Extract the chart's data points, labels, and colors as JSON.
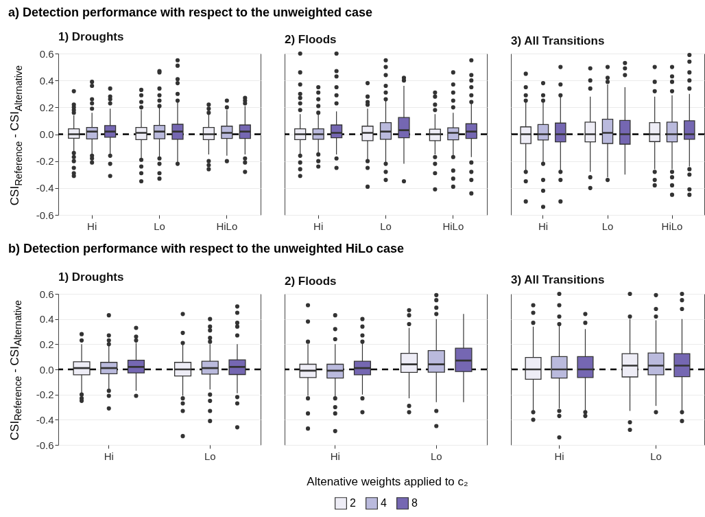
{
  "chart_data": [
    {
      "type": "other",
      "title": "a) Detection performance with respect to the unweighted case"
    },
    {
      "type": "box",
      "title": "1) Droughts",
      "ylabel": "CSI$_{Reference}$ - CSI$_{Alternative}$",
      "categories": [
        "Hi",
        "Lo",
        "HiLo"
      ],
      "ylim": [
        -0.6,
        0.6
      ],
      "yticks": [
        -0.6,
        -0.4,
        -0.2,
        {
          "value": 0,
          "label": "0.0"
        },
        0.2,
        0.4,
        0.6
      ],
      "grid": "y",
      "legend": "bottom",
      "legend_title": "Altenative weights applied to c₂",
      "ref_lines": [
        {
          "axis": "y",
          "value": 0,
          "color": "#000000",
          "line_style": "dashed"
        }
      ],
      "series": [
        {
          "name": "2",
          "color": "#eeedf6",
          "boxes": [
            {
              "low": -0.13,
              "q1": -0.03,
              "median": 0,
              "q3": 0.04,
              "high": 0.14,
              "outliers": [
                0.32,
                0.22,
                0.2,
                0.18,
                0.16,
                -0.14,
                -0.17,
                -0.2,
                -0.25,
                -0.29,
                -0.31
              ]
            },
            {
              "low": -0.18,
              "q1": -0.04,
              "median": 0.01,
              "q3": 0.05,
              "high": 0.18,
              "outliers": [
                0.33,
                0.29,
                0.24,
                0.2,
                -0.19,
                -0.24,
                -0.29,
                -0.35
              ]
            },
            {
              "low": -0.15,
              "q1": -0.04,
              "median": 0,
              "q3": 0.05,
              "high": 0.15,
              "outliers": [
                0.22,
                0.19,
                0.16,
                -0.2,
                -0.23,
                -0.26
              ]
            }
          ]
        },
        {
          "name": "4",
          "color": "#babadd",
          "boxes": [
            {
              "low": -0.15,
              "q1": -0.035,
              "median": 0.02,
              "q3": 0.05,
              "high": 0.16,
              "outliers": [
                0.39,
                0.36,
                0.26,
                0.23,
                0.19,
                -0.16,
                -0.18,
                -0.21
              ]
            },
            {
              "low": -0.17,
              "q1": -0.034,
              "median": 0.02,
              "q3": 0.066,
              "high": 0.2,
              "outliers": [
                0.47,
                0.46,
                0.34,
                0.29,
                0.25,
                0.21,
                -0.18,
                -0.22,
                -0.29,
                -0.33
              ]
            },
            {
              "low": -0.16,
              "q1": -0.031,
              "median": 0.01,
              "q3": 0.06,
              "high": 0.18,
              "outliers": [
                0.25,
                0.2,
                -0.2
              ]
            }
          ]
        },
        {
          "name": "8",
          "color": "#7567b2",
          "boxes": [
            {
              "low": -0.15,
              "q1": -0.022,
              "median": 0.02,
              "q3": 0.064,
              "high": 0.19,
              "outliers": [
                0.34,
                0.28,
                0.26,
                0.23,
                -0.16,
                -0.22,
                -0.31
              ]
            },
            {
              "low": -0.21,
              "q1": -0.038,
              "median": 0.02,
              "q3": 0.074,
              "high": 0.24,
              "outliers": [
                0.55,
                0.51,
                0.41,
                0.38,
                0.3,
                0.25,
                -0.22
              ]
            },
            {
              "low": -0.15,
              "q1": -0.031,
              "median": 0.02,
              "q3": 0.069,
              "high": 0.21,
              "outliers": [
                0.27,
                0.25,
                0.23,
                -0.18,
                -0.21,
                -0.28
              ]
            }
          ]
        }
      ]
    },
    {
      "type": "box",
      "title": "2) Floods",
      "categories": [
        "Hi",
        "Lo",
        "HiLo"
      ],
      "ylim": [
        -0.6,
        0.6
      ],
      "yticks": [
        -0.6,
        -0.4,
        -0.2,
        0,
        0.2,
        0.4,
        0.6
      ],
      "grid": "y",
      "tick_labels": "x",
      "ref_lines": [
        {
          "axis": "y",
          "value": 0,
          "color": "#000000",
          "line_style": "dashed"
        }
      ],
      "series": [
        {
          "name": "2",
          "color": "#eeedf6",
          "boxes": [
            {
              "low": -0.15,
              "q1": -0.04,
              "median": 0,
              "q3": 0.04,
              "high": 0.15,
              "outliers": [
                0.6,
                0.46,
                0.37,
                0.3,
                0.27,
                0.23,
                0.18,
                -0.16,
                -0.21,
                -0.26,
                -0.31
              ]
            },
            {
              "low": -0.19,
              "q1": -0.048,
              "median": 0.01,
              "q3": 0.06,
              "high": 0.19,
              "outliers": [
                0.38,
                0.28,
                0.24,
                0.22,
                -0.2,
                -0.25,
                -0.39
              ]
            },
            {
              "low": -0.15,
              "q1": -0.048,
              "median": 0,
              "q3": 0.038,
              "high": 0.15,
              "outliers": [
                0.31,
                0.28,
                0.22,
                0.18,
                -0.17,
                -0.22,
                -0.29,
                -0.41
              ]
            }
          ]
        },
        {
          "name": "4",
          "color": "#babadd",
          "boxes": [
            {
              "low": -0.14,
              "q1": -0.038,
              "median": 0,
              "q3": 0.04,
              "high": 0.15,
              "outliers": [
                0.35,
                0.31,
                0.26,
                0.21,
                0.16,
                -0.15,
                -0.2,
                -0.24
              ]
            },
            {
              "low": -0.21,
              "q1": -0.038,
              "median": 0.02,
              "q3": 0.086,
              "high": 0.25,
              "outliers": [
                0.55,
                0.5,
                0.44,
                0.36,
                0.31,
                0.26,
                -0.22,
                -0.28,
                -0.34
              ]
            },
            {
              "low": -0.16,
              "q1": -0.041,
              "median": 0.01,
              "q3": 0.048,
              "high": 0.16,
              "outliers": [
                0.46,
                0.37,
                0.31,
                0.25,
                0.2,
                -0.17,
                -0.27,
                -0.33,
                -0.39
              ]
            }
          ]
        },
        {
          "name": "8",
          "color": "#7567b2",
          "boxes": [
            {
              "low": -0.15,
              "q1": -0.026,
              "median": 0.01,
              "q3": 0.069,
              "high": 0.17,
              "outliers": [
                0.6,
                0.47,
                0.43,
                0.35,
                0.29,
                0.23,
                -0.18,
                -0.25
              ]
            },
            {
              "low": -0.22,
              "q1": -0.026,
              "median": 0.03,
              "q3": 0.124,
              "high": 0.36,
              "outliers": [
                0.42,
                0.4,
                -0.35
              ]
            },
            {
              "low": -0.17,
              "q1": -0.031,
              "median": 0.02,
              "q3": 0.078,
              "high": 0.23,
              "outliers": [
                0.55,
                0.44,
                0.4,
                0.35,
                0.29,
                0.24,
                -0.21,
                -0.28,
                -0.34,
                -0.44
              ]
            }
          ]
        }
      ]
    },
    {
      "type": "box",
      "title": "3) All Transitions",
      "categories": [
        "Hi",
        "Lo",
        "HiLo"
      ],
      "ylim": [
        -0.6,
        0.6
      ],
      "yticks": [
        -0.6,
        -0.4,
        -0.2,
        0,
        0.2,
        0.4,
        0.6
      ],
      "grid": "y",
      "tick_labels": "x",
      "ref_lines": [
        {
          "axis": "y",
          "value": 0,
          "color": "#000000",
          "line_style": "dashed"
        }
      ],
      "series": [
        {
          "name": "2",
          "color": "#eeedf6",
          "boxes": [
            {
              "low": -0.27,
              "q1": -0.07,
              "median": 0,
              "q3": 0.055,
              "high": 0.24,
              "outliers": [
                0.45,
                0.35,
                0.29,
                0.25,
                -0.28,
                -0.35,
                -0.5
              ]
            },
            {
              "low": -0.28,
              "q1": -0.057,
              "median": 0,
              "q3": 0.09,
              "high": 0.28,
              "outliers": [
                0.49,
                0.4,
                0.34,
                -0.32,
                -0.4
              ]
            },
            {
              "low": -0.26,
              "q1": -0.055,
              "median": 0,
              "q3": 0.086,
              "high": 0.28,
              "outliers": [
                0.5,
                0.39,
                0.32,
                -0.28,
                -0.34,
                -0.38
              ]
            }
          ]
        },
        {
          "name": "4",
          "color": "#babadd",
          "boxes": [
            {
              "low": -0.21,
              "q1": -0.043,
              "median": 0,
              "q3": 0.072,
              "high": 0.24,
              "outliers": [
                0.38,
                0.29,
                0.25,
                -0.22,
                -0.34,
                -0.42,
                -0.54
              ]
            },
            {
              "low": -0.32,
              "q1": -0.069,
              "median": 0.01,
              "q3": 0.112,
              "high": 0.37,
              "outliers": [
                0.5,
                0.42,
                0.39,
                -0.34
              ]
            },
            {
              "low": -0.26,
              "q1": -0.057,
              "median": 0,
              "q3": 0.09,
              "high": 0.29,
              "outliers": [
                0.5,
                0.43,
                0.39,
                0.32,
                -0.28,
                -0.32,
                -0.38,
                -0.45
              ]
            }
          ]
        },
        {
          "name": "8",
          "color": "#7567b2",
          "boxes": [
            {
              "low": -0.27,
              "q1": -0.057,
              "median": 0,
              "q3": 0.083,
              "high": 0.28,
              "outliers": [
                0.5,
                0.37,
                0.29,
                -0.28,
                -0.34,
                -0.5
              ]
            },
            {
              "low": -0.3,
              "q1": -0.074,
              "median": 0,
              "q3": 0.103,
              "high": 0.35,
              "outliers": [
                0.53,
                0.49,
                0.44
              ]
            },
            {
              "low": -0.24,
              "q1": -0.038,
              "median": 0,
              "q3": 0.1,
              "high": 0.3,
              "outliers": [
                0.59,
                0.54,
                0.46,
                0.4,
                0.34,
                -0.26,
                -0.3,
                -0.41,
                -0.45
              ]
            }
          ]
        }
      ]
    },
    {
      "type": "other",
      "title": "b) Detection performance with respect to the unweighted HiLo case"
    },
    {
      "type": "box",
      "title": "1) Droughts",
      "ylabel": "CSI$_{Reference}$ - CSI$_{Alternative}$",
      "categories": [
        "Hi",
        "Lo"
      ],
      "ylim": [
        -0.6,
        0.6
      ],
      "yticks": [
        -0.6,
        -0.4,
        -0.2,
        {
          "value": 0,
          "label": "0.0"
        },
        0.2,
        0.4,
        0.6
      ],
      "grid": "y",
      "ref_lines": [
        {
          "axis": "y",
          "value": 0,
          "color": "#000000",
          "line_style": "dashed"
        }
      ],
      "series": [
        {
          "name": "2",
          "color": "#eeedf6",
          "boxes": [
            {
              "low": -0.19,
              "q1": -0.043,
              "median": 0.01,
              "q3": 0.061,
              "high": 0.2,
              "outliers": [
                0.28,
                0.23,
                -0.2,
                -0.23,
                -0.25
              ]
            },
            {
              "low": -0.21,
              "q1": -0.052,
              "median": 0,
              "q3": 0.056,
              "high": 0.2,
              "outliers": [
                0.44,
                0.29,
                0.21,
                -0.23,
                -0.27,
                -0.33,
                -0.53
              ]
            }
          ]
        },
        {
          "name": "4",
          "color": "#babadd",
          "boxes": [
            {
              "low": -0.16,
              "q1": -0.035,
              "median": 0.01,
              "q3": 0.056,
              "high": 0.19,
              "outliers": [
                0.43,
                0.27,
                0.23,
                0.2,
                -0.17,
                -0.21,
                -0.31
              ]
            },
            {
              "low": -0.16,
              "q1": -0.037,
              "median": 0.01,
              "q3": 0.065,
              "high": 0.2,
              "outliers": [
                0.4,
                0.34,
                0.31,
                0.25,
                0.22,
                -0.2,
                -0.25,
                -0.33,
                -0.41
              ]
            }
          ]
        },
        {
          "name": "8",
          "color": "#7567b2",
          "boxes": [
            {
              "low": -0.17,
              "q1": -0.028,
              "median": 0.02,
              "q3": 0.073,
              "high": 0.21,
              "outliers": [
                0.33,
                0.26,
                0.23,
                -0.21
              ]
            },
            {
              "low": -0.19,
              "q1": -0.041,
              "median": 0.02,
              "q3": 0.076,
              "high": 0.2,
              "outliers": [
                0.5,
                0.45,
                0.37,
                0.34,
                0.27,
                -0.22,
                -0.27,
                -0.46
              ]
            }
          ]
        }
      ]
    },
    {
      "type": "box",
      "title": "2) Floods",
      "categories": [
        "Hi",
        "Lo"
      ],
      "ylim": [
        -0.6,
        0.6
      ],
      "yticks": [
        -0.6,
        -0.4,
        -0.2,
        0,
        0.2,
        0.4,
        0.6
      ],
      "grid": "y",
      "tick_labels": "x",
      "ref_lines": [
        {
          "axis": "y",
          "value": 0,
          "color": "#000000",
          "line_style": "dashed"
        }
      ],
      "series": [
        {
          "name": "2",
          "color": "#eeedf6",
          "boxes": [
            {
              "low": -0.21,
              "q1": -0.065,
              "median": -0.01,
              "q3": 0.041,
              "high": 0.2,
              "outliers": [
                0.51,
                0.38,
                0.22,
                -0.23,
                -0.35,
                -0.47
              ]
            },
            {
              "low": -0.23,
              "q1": -0.024,
              "median": 0.04,
              "q3": 0.127,
              "high": 0.33,
              "outliers": [
                0.47,
                0.43,
                0.36,
                -0.29,
                -0.34
              ]
            }
          ]
        },
        {
          "name": "4",
          "color": "#babadd",
          "boxes": [
            {
              "low": -0.22,
              "q1": -0.069,
              "median": -0.01,
              "q3": 0.041,
              "high": 0.2,
              "outliers": [
                0.43,
                0.32,
                0.24,
                -0.23,
                -0.3,
                -0.35,
                -0.49
              ]
            },
            {
              "low": -0.26,
              "q1": -0.022,
              "median": 0.04,
              "q3": 0.149,
              "high": 0.4,
              "outliers": [
                0.59,
                0.55,
                0.49,
                0.44,
                -0.33,
                -0.45
              ]
            }
          ]
        },
        {
          "name": "8",
          "color": "#7567b2",
          "boxes": [
            {
              "low": -0.2,
              "q1": -0.043,
              "median": 0.01,
              "q3": 0.065,
              "high": 0.21,
              "outliers": [
                0.4,
                0.34,
                0.27,
                0.22,
                -0.23,
                -0.34
              ]
            },
            {
              "low": -0.26,
              "q1": -0.017,
              "median": 0.07,
              "q3": 0.168,
              "high": 0.44
            }
          ]
        }
      ]
    },
    {
      "type": "box",
      "title": "3) All Transitions",
      "categories": [
        "Hi",
        "Lo"
      ],
      "ylim": [
        -0.6,
        0.6
      ],
      "yticks": [
        -0.6,
        -0.4,
        -0.2,
        0,
        0.2,
        0.4,
        0.6
      ],
      "grid": "y",
      "tick_labels": "x",
      "ref_lines": [
        {
          "axis": "y",
          "value": 0,
          "color": "#000000",
          "line_style": "dashed"
        }
      ],
      "series": [
        {
          "name": "2",
          "color": "#eeedf6",
          "boxes": [
            {
              "low": -0.33,
              "q1": -0.078,
              "median": 0,
              "q3": 0.095,
              "high": 0.34,
              "outliers": [
                0.51,
                0.45,
                0.37,
                -0.34,
                -0.4
              ]
            },
            {
              "low": -0.33,
              "q1": -0.06,
              "median": 0.03,
              "q3": 0.125,
              "high": 0.4,
              "outliers": [
                0.6,
                0.42,
                -0.42,
                -0.48
              ]
            }
          ]
        },
        {
          "name": "4",
          "color": "#babadd",
          "boxes": [
            {
              "low": -0.31,
              "q1": -0.069,
              "median": 0,
              "q3": 0.102,
              "high": 0.35,
              "outliers": [
                0.6,
                0.51,
                0.42,
                0.36,
                -0.33,
                -0.37,
                -0.54
              ]
            },
            {
              "low": -0.29,
              "q1": -0.043,
              "median": 0.03,
              "q3": 0.13,
              "high": 0.39,
              "outliers": [
                0.59,
                0.48,
                0.42,
                -0.34
              ]
            }
          ]
        },
        {
          "name": "8",
          "color": "#7567b2",
          "boxes": [
            {
              "low": -0.33,
              "q1": -0.065,
              "median": 0,
              "q3": 0.102,
              "high": 0.32,
              "outliers": [
                0.44,
                0.37,
                -0.34,
                -0.37
              ]
            },
            {
              "low": -0.33,
              "q1": -0.058,
              "median": 0.03,
              "q3": 0.125,
              "high": 0.4,
              "outliers": [
                0.6,
                0.55,
                0.48,
                -0.34,
                -0.41
              ]
            }
          ]
        }
      ]
    }
  ]
}
